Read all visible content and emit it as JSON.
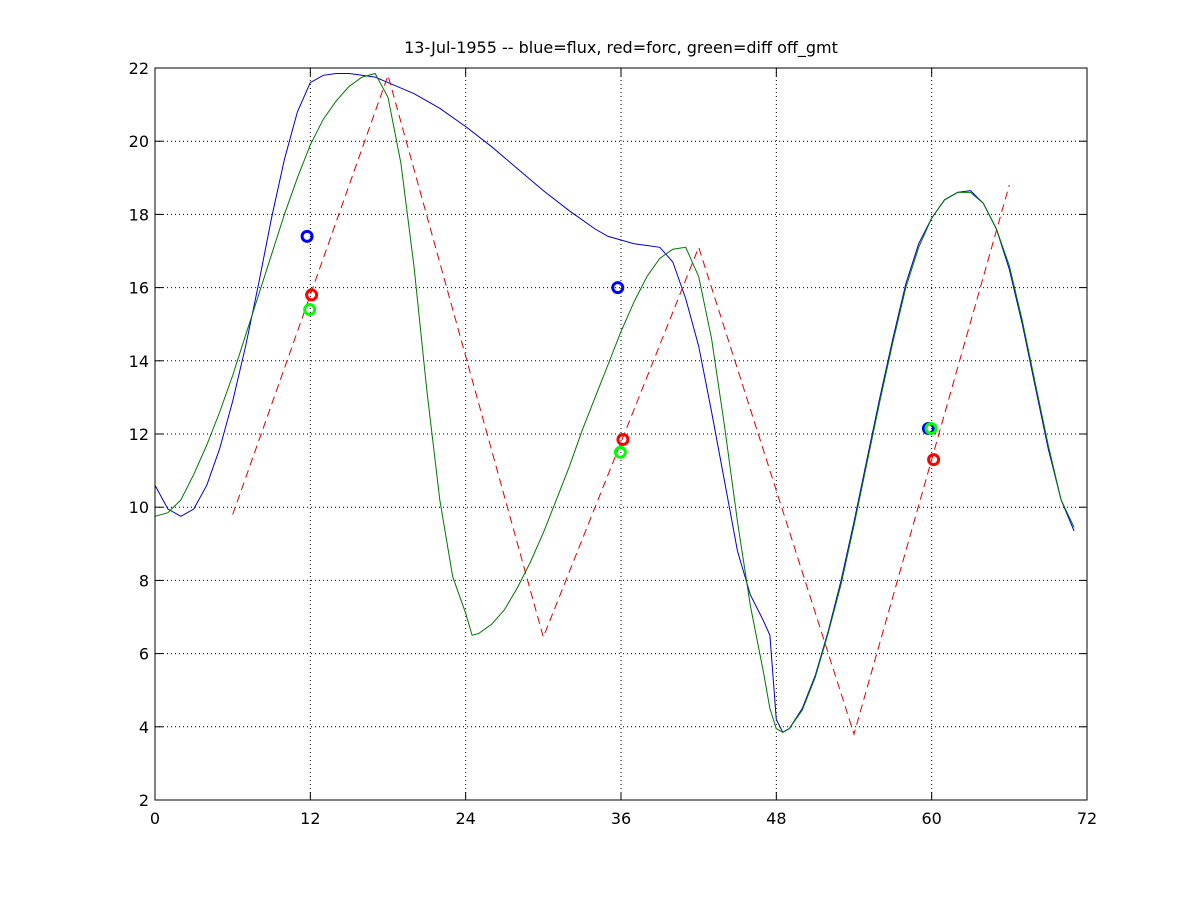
{
  "chart_data": {
    "type": "line",
    "title": "13-Jul-1955 -- blue=flux, red=forc, green=diff off_gmt",
    "xlabel": "",
    "ylabel": "",
    "xlim": [
      0,
      72
    ],
    "ylim": [
      2,
      22
    ],
    "xticks": [
      0,
      12,
      24,
      36,
      48,
      60,
      72
    ],
    "yticks": [
      2,
      4,
      6,
      8,
      10,
      12,
      14,
      16,
      18,
      20,
      22
    ],
    "grid": true,
    "legend": "none",
    "series": [
      {
        "color": "#0000cc",
        "style": "solid",
        "points": [
          [
            0,
            10.6
          ],
          [
            1,
            9.95
          ],
          [
            2,
            9.75
          ],
          [
            3,
            9.95
          ],
          [
            4,
            10.6
          ],
          [
            5,
            11.6
          ],
          [
            6,
            12.9
          ],
          [
            7,
            14.4
          ],
          [
            8,
            16.1
          ],
          [
            9,
            17.9
          ],
          [
            10,
            19.5
          ],
          [
            11,
            20.8
          ],
          [
            12,
            21.6
          ],
          [
            13,
            21.8
          ],
          [
            14,
            21.85
          ],
          [
            15,
            21.85
          ],
          [
            16,
            21.8
          ],
          [
            17,
            21.75
          ],
          [
            18,
            21.6
          ],
          [
            20,
            21.3
          ],
          [
            22,
            20.9
          ],
          [
            24,
            20.4
          ],
          [
            26,
            19.85
          ],
          [
            28,
            19.25
          ],
          [
            30,
            18.65
          ],
          [
            32,
            18.1
          ],
          [
            34,
            17.6
          ],
          [
            35,
            17.4
          ],
          [
            36,
            17.3
          ],
          [
            37,
            17.2
          ],
          [
            38,
            17.15
          ],
          [
            39,
            17.1
          ],
          [
            40,
            16.7
          ],
          [
            41,
            15.7
          ],
          [
            42,
            14.4
          ],
          [
            43,
            12.6
          ],
          [
            44,
            10.7
          ],
          [
            45,
            8.8
          ],
          [
            46,
            7.6
          ],
          [
            47,
            6.9
          ],
          [
            47.5,
            6.5
          ],
          [
            48,
            4.2
          ],
          [
            48.5,
            3.85
          ],
          [
            49,
            3.95
          ],
          [
            50,
            4.5
          ],
          [
            51,
            5.4
          ],
          [
            52,
            6.6
          ],
          [
            53,
            8.0
          ],
          [
            54,
            9.6
          ],
          [
            55,
            11.3
          ],
          [
            56,
            13.0
          ],
          [
            57,
            14.6
          ],
          [
            58,
            16.1
          ],
          [
            59,
            17.2
          ],
          [
            60,
            17.9
          ],
          [
            61,
            18.4
          ],
          [
            62,
            18.6
          ],
          [
            63,
            18.65
          ],
          [
            64,
            18.3
          ],
          [
            65,
            17.6
          ],
          [
            66,
            16.5
          ],
          [
            67,
            15.0
          ],
          [
            68,
            13.3
          ],
          [
            69,
            11.6
          ],
          [
            70,
            10.2
          ],
          [
            71,
            9.35
          ]
        ]
      },
      {
        "color": "#dd0000",
        "style": "dashed",
        "points": [
          [
            6,
            9.8
          ],
          [
            18,
            21.8
          ],
          [
            30,
            6.45
          ],
          [
            42,
            17.1
          ],
          [
            54,
            3.8
          ],
          [
            66,
            18.8
          ]
        ]
      },
      {
        "color": "#007700",
        "style": "solid",
        "points": [
          [
            0,
            9.75
          ],
          [
            1,
            9.85
          ],
          [
            2,
            10.2
          ],
          [
            3,
            10.9
          ],
          [
            4,
            11.7
          ],
          [
            5,
            12.6
          ],
          [
            6,
            13.6
          ],
          [
            7,
            14.7
          ],
          [
            8,
            15.8
          ],
          [
            9,
            16.9
          ],
          [
            10,
            18.0
          ],
          [
            11,
            19.0
          ],
          [
            12,
            19.9
          ],
          [
            13,
            20.6
          ],
          [
            14,
            21.1
          ],
          [
            15,
            21.5
          ],
          [
            16,
            21.75
          ],
          [
            17,
            21.85
          ],
          [
            18,
            21.2
          ],
          [
            19,
            19.4
          ],
          [
            20,
            16.6
          ],
          [
            21,
            13.2
          ],
          [
            22,
            10.2
          ],
          [
            23,
            8.1
          ],
          [
            24,
            7.1
          ],
          [
            24.5,
            6.5
          ],
          [
            25,
            6.55
          ],
          [
            26,
            6.8
          ],
          [
            27,
            7.2
          ],
          [
            28,
            7.8
          ],
          [
            29,
            8.5
          ],
          [
            30,
            9.3
          ],
          [
            31,
            10.2
          ],
          [
            32,
            11.1
          ],
          [
            33,
            12.1
          ],
          [
            34,
            13.0
          ],
          [
            35,
            13.9
          ],
          [
            36,
            14.8
          ],
          [
            37,
            15.6
          ],
          [
            38,
            16.3
          ],
          [
            39,
            16.8
          ],
          [
            40,
            17.05
          ],
          [
            41,
            17.1
          ],
          [
            42,
            16.3
          ],
          [
            43,
            14.6
          ],
          [
            44,
            12.2
          ],
          [
            45,
            9.6
          ],
          [
            46,
            7.3
          ],
          [
            47,
            5.5
          ],
          [
            47.5,
            4.5
          ],
          [
            48,
            3.95
          ],
          [
            48.5,
            3.85
          ],
          [
            49,
            3.95
          ],
          [
            50,
            4.45
          ],
          [
            51,
            5.35
          ],
          [
            52,
            6.55
          ],
          [
            53,
            7.9
          ],
          [
            54,
            9.5
          ],
          [
            55,
            11.2
          ],
          [
            56,
            12.9
          ],
          [
            57,
            14.5
          ],
          [
            58,
            16.0
          ],
          [
            59,
            17.1
          ],
          [
            60,
            17.9
          ],
          [
            61,
            18.4
          ],
          [
            62,
            18.6
          ],
          [
            63,
            18.6
          ],
          [
            64,
            18.3
          ],
          [
            65,
            17.6
          ],
          [
            66,
            16.6
          ],
          [
            67,
            15.1
          ],
          [
            68,
            13.4
          ],
          [
            69,
            11.7
          ],
          [
            70,
            10.2
          ],
          [
            71,
            9.45
          ]
        ]
      }
    ],
    "markers": [
      {
        "x": 11.75,
        "y": 17.4,
        "color": "#0000ff"
      },
      {
        "x": 12.1,
        "y": 15.8,
        "color": "#ff0000"
      },
      {
        "x": 11.95,
        "y": 15.4,
        "color": "#00ff00"
      },
      {
        "x": 35.75,
        "y": 16.0,
        "color": "#0000ff"
      },
      {
        "x": 36.15,
        "y": 11.85,
        "color": "#ff0000"
      },
      {
        "x": 35.95,
        "y": 11.5,
        "color": "#00ff00"
      },
      {
        "x": 59.75,
        "y": 12.15,
        "color": "#0000ff"
      },
      {
        "x": 60.15,
        "y": 11.3,
        "color": "#ff0000"
      },
      {
        "x": 59.95,
        "y": 12.15,
        "color": "#00ff00"
      }
    ]
  }
}
